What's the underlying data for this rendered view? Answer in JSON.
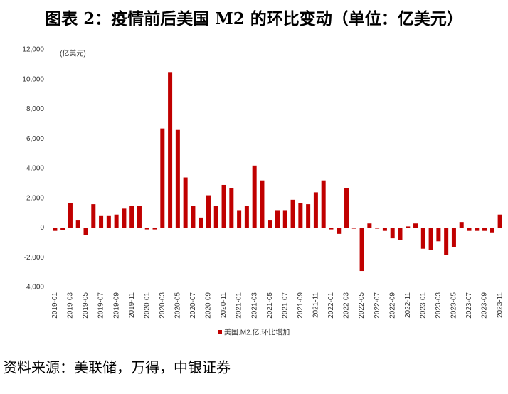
{
  "chart_data": {
    "type": "bar",
    "title": "图表 2：疫情前后美国 M2 的环比变动（单位：亿美元）",
    "unit_label": "(亿美元)",
    "source": "资料来源：美联储，万得，中银证券",
    "categories": [
      "2019-01",
      null,
      "2019-03",
      null,
      "2019-05",
      null,
      "2019-07",
      null,
      "2019-09",
      null,
      "2019-11",
      null,
      "2020-01",
      null,
      "2020-03",
      null,
      "2020-05",
      null,
      "2020-07",
      null,
      "2020-09",
      null,
      "2020-11",
      null,
      "2021-01",
      null,
      "2021-03",
      null,
      "2021-05",
      null,
      "2021-07",
      null,
      "2021-09",
      null,
      "2021-11",
      null,
      "2022-01",
      null,
      "2022-03",
      null,
      "2022-05",
      null,
      "2022-07",
      null,
      "2022-09",
      null,
      "2022-11",
      null,
      "2023-01",
      null,
      "2023-03",
      null,
      "2023-05",
      null,
      "2023-07",
      null,
      "2023-09",
      null,
      "2023-11"
    ],
    "series": [
      {
        "name": "美国:M2:亿:环比增加",
        "color": "#c00000",
        "values": [
          -200,
          -150,
          1700,
          500,
          -500,
          1600,
          800,
          800,
          900,
          1300,
          1500,
          1500,
          -100,
          -100,
          6700,
          10500,
          6600,
          3400,
          1500,
          700,
          2200,
          1500,
          2900,
          2700,
          1200,
          1500,
          4200,
          3200,
          500,
          1200,
          1200,
          1900,
          1700,
          1600,
          2400,
          3200,
          -100,
          -400,
          2700,
          -50,
          -2900,
          300,
          -50,
          -200,
          -700,
          -800,
          100,
          300,
          -1400,
          -1500,
          -900,
          -1800,
          -1300,
          400,
          -200,
          -200,
          -200,
          -300,
          900
        ]
      }
    ],
    "ylim": [
      -4000,
      12000
    ],
    "yticks": [
      {
        "value": -4000,
        "label": "-4,000"
      },
      {
        "value": -2000,
        "label": "-2,000"
      },
      0,
      {
        "value": 2000,
        "label": "2,000"
      },
      {
        "value": 4000,
        "label": "4,000"
      },
      {
        "value": 6000,
        "label": "6,000"
      },
      {
        "value": 8000,
        "label": "8,000"
      },
      {
        "value": 10000,
        "label": "10,000"
      },
      {
        "value": 12000,
        "label": "12,000"
      }
    ],
    "grid": false
  }
}
